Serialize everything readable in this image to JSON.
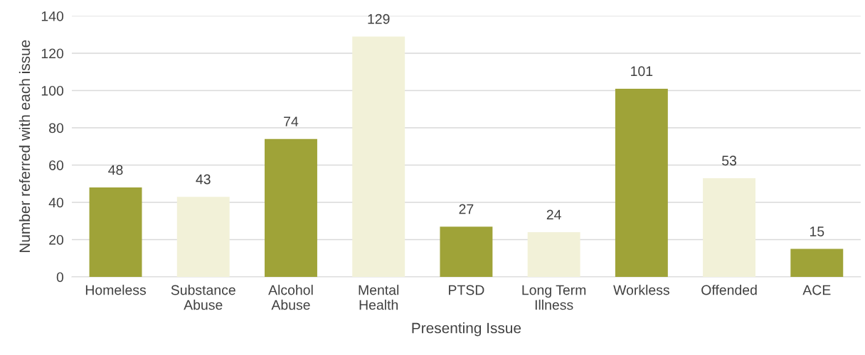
{
  "chart_data": {
    "type": "bar",
    "xlabel": "Presenting Issue",
    "ylabel": "Number referred with each issue",
    "categories": [
      "Homeless",
      "Substance Abuse",
      "Alcohol Abuse",
      "Mental Health",
      "PTSD",
      "Long Term Illness",
      "Workless",
      "Offended",
      "ACE"
    ],
    "values": [
      48,
      43,
      74,
      129,
      27,
      24,
      101,
      53,
      15
    ],
    "colors": [
      "#9fa338",
      "#f2f1d8",
      "#9fa338",
      "#f2f1d8",
      "#9fa338",
      "#f2f1d8",
      "#9fa338",
      "#f2f1d8",
      "#9fa338"
    ],
    "ylim": [
      0,
      140
    ],
    "yticks": [
      0,
      20,
      40,
      60,
      80,
      100,
      120,
      140
    ],
    "grid": "y",
    "data_labels": true
  }
}
